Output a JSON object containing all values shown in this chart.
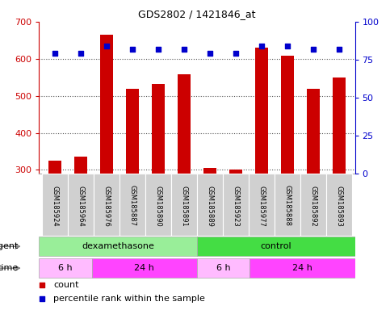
{
  "title": "GDS2802 / 1421846_at",
  "samples": [
    "GSM185924",
    "GSM185964",
    "GSM185976",
    "GSM185887",
    "GSM185890",
    "GSM185891",
    "GSM185889",
    "GSM185923",
    "GSM185977",
    "GSM185888",
    "GSM185892",
    "GSM185893"
  ],
  "counts": [
    325,
    335,
    665,
    518,
    532,
    558,
    305,
    302,
    630,
    608,
    518,
    550
  ],
  "percentile_ranks": [
    79,
    79,
    84,
    82,
    82,
    82,
    79,
    79,
    84,
    84,
    82,
    82
  ],
  "ylim_left": [
    290,
    700
  ],
  "ylim_right": [
    0,
    100
  ],
  "yticks_left": [
    300,
    400,
    500,
    600,
    700
  ],
  "yticks_right": [
    0,
    25,
    50,
    75,
    100
  ],
  "bar_color": "#cc0000",
  "dot_color": "#0000cc",
  "bar_width": 0.5,
  "agent_groups": [
    {
      "label": "dexamethasone",
      "start": 0,
      "end": 6,
      "color": "#99ee99"
    },
    {
      "label": "control",
      "start": 6,
      "end": 12,
      "color": "#44dd44"
    }
  ],
  "time_groups": [
    {
      "label": "6 h",
      "start": 0,
      "end": 2,
      "color": "#ffbbff"
    },
    {
      "label": "24 h",
      "start": 2,
      "end": 6,
      "color": "#ff44ff"
    },
    {
      "label": "6 h",
      "start": 6,
      "end": 8,
      "color": "#ffbbff"
    },
    {
      "label": "24 h",
      "start": 8,
      "end": 12,
      "color": "#ff44ff"
    }
  ],
  "background_color": "#ffffff",
  "grid_color": "#555555",
  "left_tick_color": "#cc0000",
  "right_tick_color": "#0000cc"
}
